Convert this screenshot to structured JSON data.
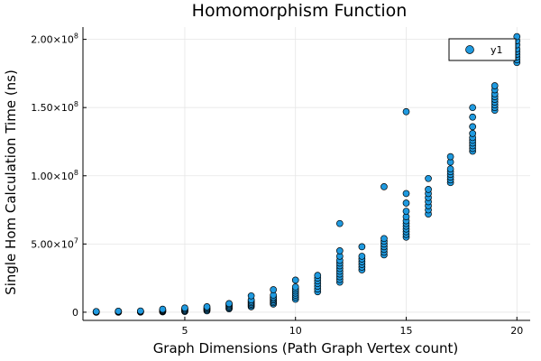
{
  "chart_data": {
    "type": "scatter",
    "title": "Homomorphism Function",
    "xlabel": "Graph Dimensions (Path Graph Vertex count)",
    "ylabel": "Single Hom Calculation Time (ns)",
    "xlim": [
      0.4,
      20.6
    ],
    "ylim": [
      -6000000,
      209000000
    ],
    "x_ticks": [
      5,
      10,
      15,
      20
    ],
    "x_tick_labels": [
      "5",
      "10",
      "15",
      "20"
    ],
    "y_ticks": [
      0,
      50000000,
      100000000,
      150000000,
      200000000
    ],
    "y_tick_labels": [
      {
        "mantissa": "0",
        "exp": ""
      },
      {
        "mantissa": "5.00×10",
        "exp": "7"
      },
      {
        "mantissa": "1.00×10",
        "exp": "8"
      },
      {
        "mantissa": "1.50×10",
        "exp": "8"
      },
      {
        "mantissa": "2.00×10",
        "exp": "8"
      }
    ],
    "grid": true,
    "legend_position": "top-right",
    "marker_color": "#1f9ae0",
    "series": [
      {
        "name": "y1",
        "points": [
          [
            1,
            0
          ],
          [
            1,
            100000
          ],
          [
            1,
            200000
          ],
          [
            1,
            300000
          ],
          [
            1,
            400000
          ],
          [
            1,
            500000
          ],
          [
            2,
            0
          ],
          [
            2,
            150000
          ],
          [
            2,
            300000
          ],
          [
            2,
            450000
          ],
          [
            2,
            600000
          ],
          [
            2,
            750000
          ],
          [
            3,
            100000
          ],
          [
            3,
            300000
          ],
          [
            3,
            500000
          ],
          [
            3,
            700000
          ],
          [
            3,
            900000
          ],
          [
            4,
            300000
          ],
          [
            4,
            700000
          ],
          [
            4,
            1100000
          ],
          [
            4,
            1600000
          ],
          [
            4,
            2200000
          ],
          [
            5,
            500000
          ],
          [
            5,
            1000000
          ],
          [
            5,
            1600000
          ],
          [
            5,
            2300000
          ],
          [
            5,
            3100000
          ],
          [
            6,
            1000000
          ],
          [
            6,
            1700000
          ],
          [
            6,
            2400000
          ],
          [
            6,
            3200000
          ],
          [
            6,
            4000000
          ],
          [
            7,
            2500000
          ],
          [
            7,
            3200000
          ],
          [
            7,
            4000000
          ],
          [
            7,
            4800000
          ],
          [
            7,
            5600000
          ],
          [
            7,
            6300000
          ],
          [
            8,
            4000000
          ],
          [
            8,
            5000000
          ],
          [
            8,
            6000000
          ],
          [
            8,
            7000000
          ],
          [
            8,
            8000000
          ],
          [
            8,
            9000000
          ],
          [
            8,
            12000000
          ],
          [
            9,
            6000000
          ],
          [
            9,
            7000000
          ],
          [
            9,
            8000000
          ],
          [
            9,
            9000000
          ],
          [
            9,
            10000000
          ],
          [
            9,
            11000000
          ],
          [
            9,
            12500000
          ],
          [
            9,
            16500000
          ],
          [
            10,
            9500000
          ],
          [
            10,
            11000000
          ],
          [
            10,
            12500000
          ],
          [
            10,
            14000000
          ],
          [
            10,
            15500000
          ],
          [
            10,
            17000000
          ],
          [
            10,
            18500000
          ],
          [
            10,
            23500000
          ],
          [
            11,
            15000000
          ],
          [
            11,
            17000000
          ],
          [
            11,
            19000000
          ],
          [
            11,
            21000000
          ],
          [
            11,
            23000000
          ],
          [
            11,
            25000000
          ],
          [
            11,
            27000000
          ],
          [
            12,
            22000000
          ],
          [
            12,
            24000000
          ],
          [
            12,
            26000000
          ],
          [
            12,
            28000000
          ],
          [
            12,
            30000000
          ],
          [
            12,
            32000000
          ],
          [
            12,
            34000000
          ],
          [
            12,
            36000000
          ],
          [
            12,
            38000000
          ],
          [
            12,
            41000000
          ],
          [
            12,
            45000000
          ],
          [
            12,
            65000000
          ],
          [
            13,
            31000000
          ],
          [
            13,
            33000000
          ],
          [
            13,
            35000000
          ],
          [
            13,
            37000000
          ],
          [
            13,
            39000000
          ],
          [
            13,
            41000000
          ],
          [
            13,
            48000000
          ],
          [
            14,
            42000000
          ],
          [
            14,
            44000000
          ],
          [
            14,
            46000000
          ],
          [
            14,
            48000000
          ],
          [
            14,
            50000000
          ],
          [
            14,
            52000000
          ],
          [
            14,
            54000000
          ],
          [
            14,
            92000000
          ],
          [
            15,
            55000000
          ],
          [
            15,
            57000000
          ],
          [
            15,
            59000000
          ],
          [
            15,
            61000000
          ],
          [
            15,
            63000000
          ],
          [
            15,
            65000000
          ],
          [
            15,
            67000000
          ],
          [
            15,
            70000000
          ],
          [
            15,
            74000000
          ],
          [
            15,
            80000000
          ],
          [
            15,
            87000000
          ],
          [
            15,
            147000000
          ],
          [
            16,
            72000000
          ],
          [
            16,
            75000000
          ],
          [
            16,
            78000000
          ],
          [
            16,
            81000000
          ],
          [
            16,
            84000000
          ],
          [
            16,
            87000000
          ],
          [
            16,
            90000000
          ],
          [
            16,
            98000000
          ],
          [
            17,
            95000000
          ],
          [
            17,
            97000000
          ],
          [
            17,
            99000000
          ],
          [
            17,
            101000000
          ],
          [
            17,
            103000000
          ],
          [
            17,
            105000000
          ],
          [
            17,
            110000000
          ],
          [
            17,
            114000000
          ],
          [
            18,
            118000000
          ],
          [
            18,
            120000000
          ],
          [
            18,
            122000000
          ],
          [
            18,
            124000000
          ],
          [
            18,
            126000000
          ],
          [
            18,
            128000000
          ],
          [
            18,
            131000000
          ],
          [
            18,
            136000000
          ],
          [
            18,
            143000000
          ],
          [
            18,
            150000000
          ],
          [
            19,
            148000000
          ],
          [
            19,
            150000000
          ],
          [
            19,
            152000000
          ],
          [
            19,
            154000000
          ],
          [
            19,
            156000000
          ],
          [
            19,
            158000000
          ],
          [
            19,
            160000000
          ],
          [
            19,
            163000000
          ],
          [
            19,
            166000000
          ],
          [
            20,
            183000000
          ],
          [
            20,
            185000000
          ],
          [
            20,
            187000000
          ],
          [
            20,
            189000000
          ],
          [
            20,
            191000000
          ],
          [
            20,
            193000000
          ],
          [
            20,
            196000000
          ],
          [
            20,
            199000000
          ],
          [
            20,
            202000000
          ]
        ]
      }
    ]
  }
}
